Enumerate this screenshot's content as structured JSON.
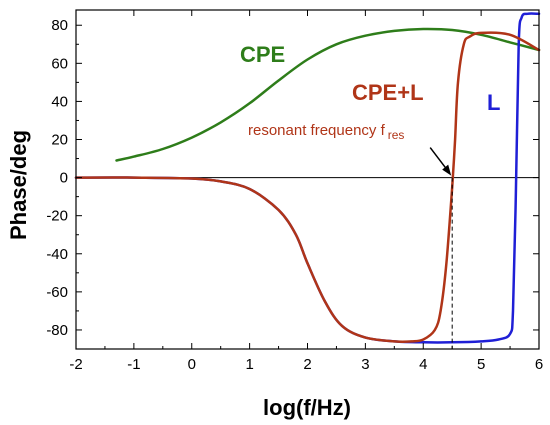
{
  "chart_data": {
    "type": "line",
    "xlabel": "log(f/Hz)",
    "ylabel": "Phase/deg",
    "xlim": [
      -2,
      6
    ],
    "ylim": [
      -90,
      88
    ],
    "xticks": [
      -2,
      -1,
      0,
      1,
      2,
      3,
      4,
      5,
      6
    ],
    "yticks": [
      -80,
      -60,
      -40,
      -20,
      0,
      20,
      40,
      60,
      80
    ],
    "xtick_labels": [
      "-2",
      "-1",
      "0",
      "1",
      "2",
      "3",
      "4",
      "5",
      "6"
    ],
    "ytick_labels": [
      "-80",
      "-60",
      "-40",
      "-20",
      "0",
      "20",
      "40",
      "60",
      "80"
    ],
    "zero_line": true,
    "series": [
      {
        "name": "CPE",
        "color": "#2e7d1a",
        "x": [
          -1.3,
          -1.0,
          -0.5,
          0.0,
          0.5,
          1.0,
          1.5,
          2.0,
          2.5,
          3.0,
          3.5,
          4.0,
          4.5,
          5.0,
          5.5,
          6.0
        ],
        "y": [
          9,
          11,
          15,
          21,
          29,
          39,
          51,
          62,
          70,
          74.5,
          77,
          78,
          77.5,
          75,
          71,
          67
        ]
      },
      {
        "name": "L",
        "color": "#1f1fd6",
        "x": [
          -2.0,
          -1.0,
          0.0,
          0.5,
          1.0,
          1.5,
          1.8,
          2.0,
          2.3,
          2.6,
          3.0,
          3.5,
          4.0,
          4.5,
          5.0,
          5.3,
          5.5,
          5.55,
          5.6,
          5.65,
          5.7,
          5.8,
          6.0
        ],
        "y": [
          0,
          0,
          -0.5,
          -2,
          -6,
          -17,
          -30,
          -45,
          -65,
          -78,
          -84,
          -86,
          -86.5,
          -86.5,
          -86,
          -85,
          -82,
          -70,
          -10,
          70,
          84,
          86,
          86
        ]
      },
      {
        "name": "CPE+L",
        "color": "#b03518",
        "x": [
          -2.0,
          -1.0,
          0.0,
          0.5,
          1.0,
          1.5,
          1.8,
          2.0,
          2.3,
          2.6,
          3.0,
          3.5,
          3.8,
          4.0,
          4.2,
          4.3,
          4.4,
          4.5,
          4.55,
          4.6,
          4.7,
          4.8,
          5.0,
          5.5,
          6.0
        ],
        "y": [
          0,
          0,
          -0.5,
          -2,
          -6,
          -17,
          -30,
          -45,
          -65,
          -78,
          -84,
          -86,
          -86,
          -85,
          -80,
          -70,
          -45,
          -5,
          20,
          50,
          70,
          74,
          76,
          75,
          67
        ]
      }
    ],
    "annotation": {
      "text": "resonant frequency f",
      "subscript": "res",
      "x": 4.5,
      "y": 0
    }
  },
  "labels": {
    "cpe": "CPE",
    "cpel": "CPE+L",
    "l": "L"
  },
  "colors": {
    "cpe": "#2e7d1a",
    "l": "#1f1fd6",
    "cpel": "#b03518"
  }
}
